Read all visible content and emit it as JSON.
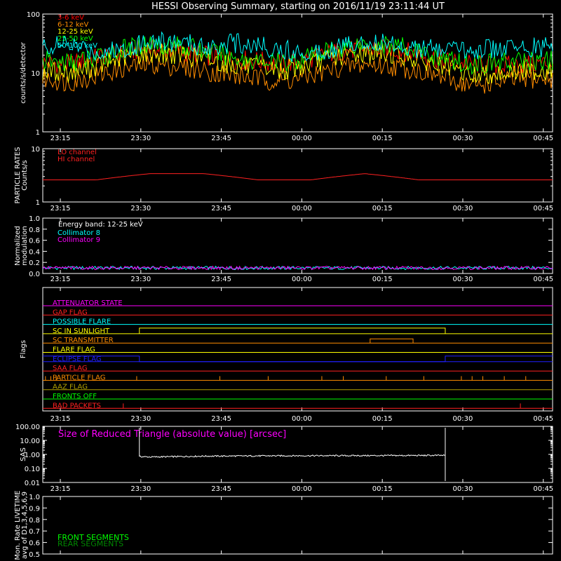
{
  "title": "HESSI Observing Summary, starting on 2016/11/19 23:11:44 UT",
  "time_ticks": [
    "23:15",
    "23:30",
    "23:45",
    "00:00",
    "00:15",
    "00:30",
    "00:45"
  ],
  "chart_data": [
    {
      "type": "line",
      "ylabel": "counts/s/detector",
      "yscale": "log",
      "ylim": [
        1,
        100
      ],
      "y_ticks": [
        "1",
        "10",
        "100"
      ],
      "legend_position": "top-left",
      "series": [
        {
          "name": "3-6 keV",
          "color": "#ff0000",
          "x_min": [
            0,
            5,
            10,
            15,
            20,
            25,
            30,
            35,
            40,
            45,
            50,
            55,
            60,
            65,
            70,
            75,
            80,
            85,
            90,
            95
          ],
          "values": [
            15,
            14,
            18,
            22,
            26,
            24,
            20,
            17,
            16,
            14,
            18,
            23,
            26,
            25,
            21,
            16,
            14,
            13,
            14,
            15
          ]
        },
        {
          "name": "6-12 keV",
          "color": "#ff8c00",
          "x_min": [
            0,
            5,
            10,
            15,
            20,
            25,
            30,
            35,
            40,
            45,
            50,
            55,
            60,
            65,
            70,
            75,
            80,
            85,
            90,
            95
          ],
          "values": [
            8,
            7,
            9,
            12,
            14,
            13,
            11,
            9,
            8,
            7,
            9,
            12,
            14,
            13,
            11,
            8,
            6,
            7,
            8,
            8
          ]
        },
        {
          "name": "12-25 keV",
          "color": "#ffff00",
          "x_min": [
            0,
            5,
            10,
            15,
            20,
            25,
            30,
            35,
            40,
            45,
            50,
            55,
            60,
            65,
            70,
            75,
            80,
            85,
            90,
            95
          ],
          "values": [
            11,
            10,
            13,
            18,
            22,
            21,
            17,
            14,
            12,
            11,
            14,
            19,
            22,
            21,
            17,
            12,
            9,
            10,
            11,
            11
          ]
        },
        {
          "name": "25-50 keV",
          "color": "#00ff00",
          "x_min": [
            0,
            5,
            10,
            15,
            20,
            25,
            30,
            35,
            40,
            45,
            50,
            55,
            60,
            65,
            70,
            75,
            80,
            85,
            90,
            95
          ],
          "values": [
            16,
            15,
            18,
            25,
            32,
            30,
            24,
            19,
            16,
            15,
            19,
            27,
            32,
            30,
            23,
            17,
            14,
            15,
            16,
            16
          ]
        },
        {
          "name": "50-100 keV",
          "color": "#00ffff",
          "x_min": [
            0,
            5,
            10,
            15,
            20,
            25,
            30,
            35,
            40,
            45,
            50,
            55,
            60,
            65,
            70,
            75,
            80,
            85,
            90,
            95
          ],
          "values": [
            28,
            30,
            22,
            26,
            35,
            33,
            28,
            32,
            30,
            24,
            22,
            28,
            34,
            32,
            26,
            24,
            25,
            26,
            27,
            28
          ]
        }
      ]
    },
    {
      "type": "line",
      "ylabel": "PARTICLE RATES",
      "ylabel2": "Counts/s",
      "yscale": "log",
      "ylim": [
        1,
        10
      ],
      "y_ticks": [
        "1",
        "10"
      ],
      "series": [
        {
          "name": "LO channel",
          "color": "#ff2020",
          "x_min": [
            0,
            10,
            20,
            30,
            40,
            50,
            60,
            70,
            80,
            90,
            95
          ],
          "values": [
            2.6,
            2.6,
            3.4,
            3.4,
            2.6,
            2.6,
            3.4,
            2.6,
            2.6,
            2.6,
            2.6
          ]
        },
        {
          "name": "HI channel",
          "color": "#ff2020",
          "x_min": [],
          "values": []
        }
      ]
    },
    {
      "type": "line",
      "ylabel": "Normalized",
      "ylabel2": "modulation",
      "ylim": [
        0.0,
        1.0
      ],
      "y_ticks": [
        "0.0",
        "0.2",
        "0.4",
        "0.6",
        "0.8",
        "1.0"
      ],
      "annotation": "Energy band: 12-25 keV",
      "series": [
        {
          "name": "Collimator 8",
          "color": "#00ffff",
          "x_min": [
            0,
            95
          ],
          "values": [
            0.1,
            0.1
          ]
        },
        {
          "name": "Collimator 9",
          "color": "#ff00ff",
          "x_min": [
            0,
            95
          ],
          "values": [
            0.1,
            0.1
          ]
        }
      ]
    },
    {
      "type": "flags",
      "ylabel": "Flags",
      "flags": [
        {
          "name": "ATTENUATOR STATE",
          "color": "#ff00ff"
        },
        {
          "name": "GAP FLAG",
          "color": "#ff2020"
        },
        {
          "name": "POSSIBLE FLARE",
          "color": "#00ffff"
        },
        {
          "name": "SC IN SUNLIGHT",
          "color": "#ffff00"
        },
        {
          "name": "SC TRANSMITTER",
          "color": "#ff8c00"
        },
        {
          "name": "FLARE FLAG",
          "color": "#ffff00"
        },
        {
          "name": "ECLIPSE FLAG",
          "color": "#2020ff"
        },
        {
          "name": "SAA FLAG",
          "color": "#ff2020"
        },
        {
          "name": "PARTICLE FLAG",
          "color": "#ff8c00"
        },
        {
          "name": "AAZ FLAG",
          "color": "#b0a000"
        },
        {
          "name": "FRONTS OFF",
          "color": "#00ff00"
        },
        {
          "name": "BAD PACKETS",
          "color": "#ff2020"
        }
      ]
    },
    {
      "type": "line",
      "ylabel": "SAS",
      "yscale": "log",
      "ylim": [
        0.01,
        100
      ],
      "y_ticks": [
        "0.01",
        "0.10",
        "1.00",
        "10.00",
        "100.00"
      ],
      "annotation": "Size of Reduced Triangle (absolute value) [arcsec]",
      "series": [
        {
          "name": "",
          "color": "#ffffff",
          "x_min": [
            18,
            20,
            30,
            45,
            60,
            75
          ],
          "values": [
            0.7,
            0.65,
            0.75,
            0.8,
            0.82,
            0.85
          ]
        }
      ]
    },
    {
      "type": "line",
      "ylabel": "Mon. Rate LIVETIME",
      "ylabel2": "avg of D1,3,4,5,6,9",
      "ylim": [
        0.5,
        1.0
      ],
      "y_ticks": [
        "0.5",
        "0.6",
        "0.7",
        "0.8",
        "0.9",
        "1.0"
      ],
      "series": [
        {
          "name": "FRONT SEGMENTS",
          "color": "#00ff00",
          "x_min": [],
          "values": []
        },
        {
          "name": "REAR SEGMENTS",
          "color": "#008800",
          "x_min": [],
          "values": []
        }
      ]
    }
  ]
}
